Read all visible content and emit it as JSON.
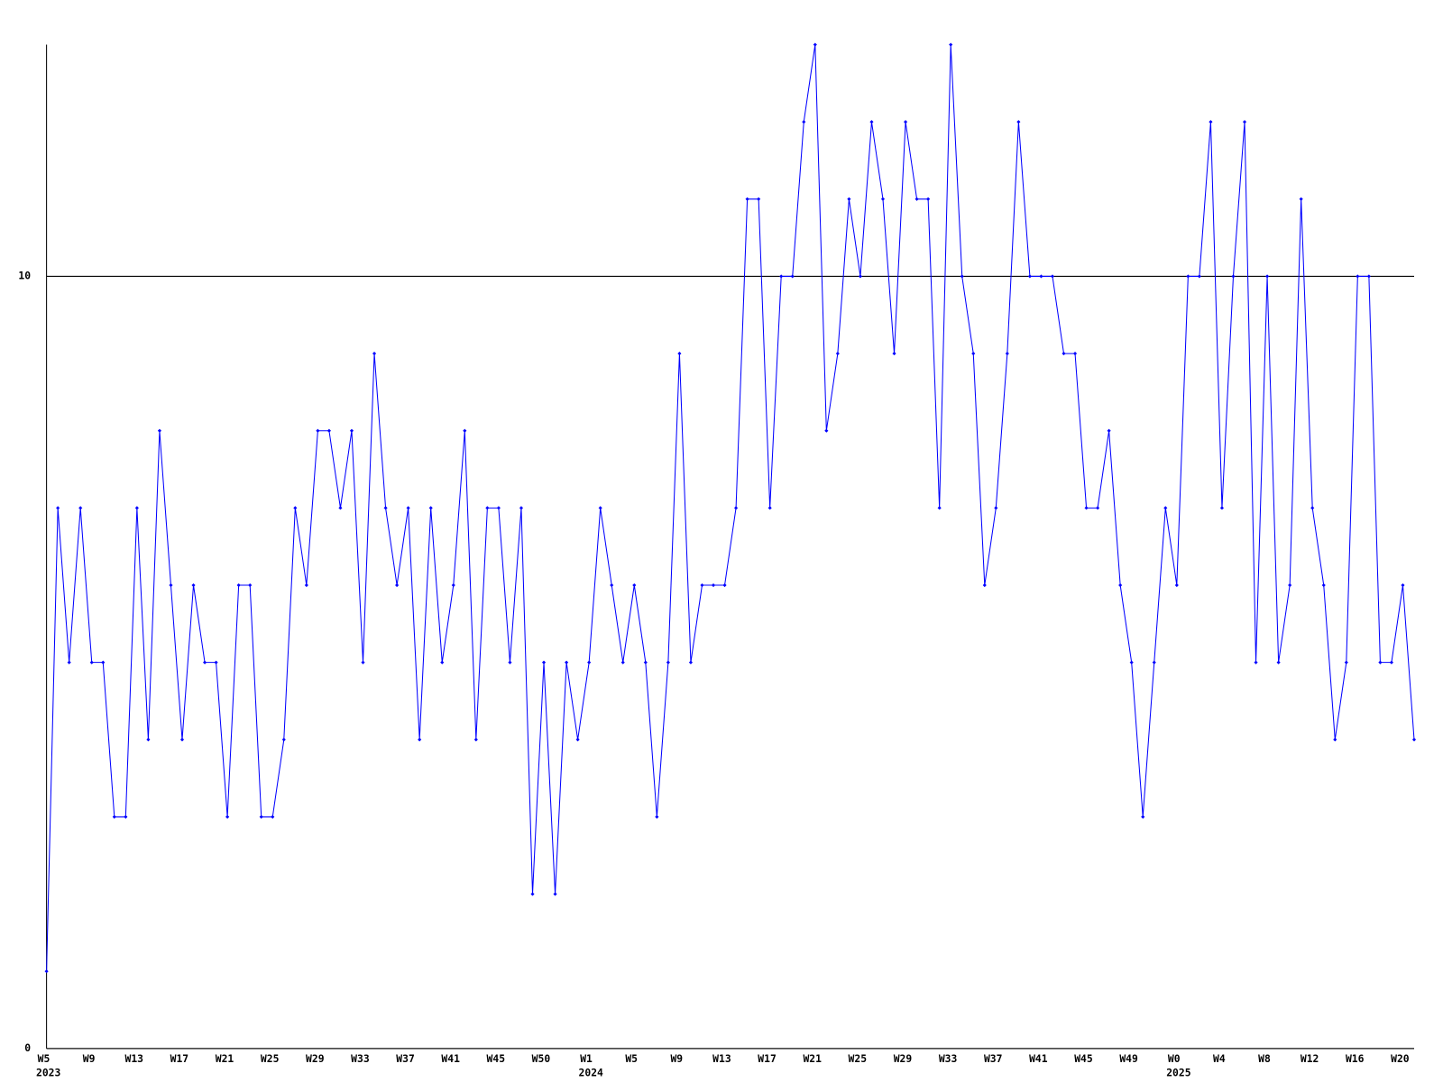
{
  "chart_data": {
    "type": "line",
    "categories": [
      "W5",
      null,
      null,
      null,
      "W9",
      null,
      null,
      null,
      "W13",
      null,
      null,
      null,
      "W17",
      null,
      null,
      null,
      "W21",
      null,
      null,
      null,
      "W25",
      null,
      null,
      null,
      "W29",
      null,
      null,
      null,
      "W33",
      null,
      null,
      null,
      "W37",
      null,
      null,
      null,
      "W41",
      null,
      null,
      null,
      "W45",
      null,
      null,
      null,
      "W50",
      null,
      null,
      null,
      "W1",
      null,
      null,
      null,
      "W5",
      null,
      null,
      null,
      "W9",
      null,
      null,
      null,
      "W13",
      null,
      null,
      null,
      "W17",
      null,
      null,
      null,
      "W21",
      null,
      null,
      null,
      "W25",
      null,
      null,
      null,
      "W29",
      null,
      null,
      null,
      "W33",
      null,
      null,
      null,
      "W37",
      null,
      null,
      null,
      "W41",
      null,
      null,
      null,
      "W45",
      null,
      null,
      null,
      "W49",
      null,
      null,
      null,
      "W0",
      null,
      null,
      null,
      "W4",
      null,
      null,
      null,
      "W8",
      null,
      null,
      null,
      "W12",
      null,
      null,
      null,
      "W16",
      null,
      null,
      null,
      "W20",
      null
    ],
    "category_years": [
      "2023",
      null,
      null,
      null,
      null,
      null,
      null,
      null,
      null,
      null,
      null,
      null,
      null,
      null,
      null,
      null,
      null,
      null,
      null,
      null,
      null,
      null,
      null,
      null,
      null,
      null,
      null,
      null,
      null,
      null,
      null,
      null,
      null,
      null,
      null,
      null,
      null,
      null,
      null,
      null,
      null,
      null,
      null,
      null,
      null,
      null,
      null,
      null,
      "2024",
      null,
      null,
      null,
      null,
      null,
      null,
      null,
      null,
      null,
      null,
      null,
      null,
      null,
      null,
      null,
      null,
      null,
      null,
      null,
      null,
      null,
      null,
      null,
      null,
      null,
      null,
      null,
      null,
      null,
      null,
      null,
      null,
      null,
      null,
      null,
      null,
      null,
      null,
      null,
      null,
      null,
      null,
      null,
      null,
      null,
      null,
      null,
      null,
      null,
      null,
      null,
      "2025",
      null,
      null,
      null,
      null,
      null,
      null,
      null,
      null,
      null,
      null,
      null,
      null,
      null,
      null,
      null,
      null,
      null,
      null,
      null,
      null,
      null
    ],
    "series": [
      {
        "color": "#0000ff",
        "values": [
          1,
          7,
          5,
          7,
          5,
          5,
          3,
          3,
          7,
          4,
          8,
          6,
          4,
          6,
          5,
          5,
          3,
          6,
          6,
          3,
          3,
          4,
          7,
          6,
          8,
          8,
          7,
          8,
          5,
          9,
          7,
          6,
          7,
          4,
          7,
          5,
          6,
          8,
          4,
          7,
          7,
          5,
          7,
          2,
          5,
          2,
          5,
          4,
          5,
          7,
          6,
          5,
          6,
          5,
          3,
          5,
          9,
          5,
          6,
          6,
          6,
          7,
          11,
          11,
          7,
          10,
          10,
          12,
          13,
          8,
          9,
          11,
          10,
          12,
          11,
          9,
          12,
          11,
          11,
          7,
          13,
          10,
          9,
          6,
          7,
          9,
          12,
          10,
          10,
          10,
          9,
          9,
          7,
          7,
          8,
          6,
          5,
          3,
          5,
          7,
          6,
          10,
          10,
          12,
          7,
          10,
          12,
          5,
          10,
          5,
          6,
          11,
          7,
          6,
          4,
          5,
          10,
          10,
          5,
          5,
          6,
          4
        ]
      }
    ],
    "ylim": [
      0,
      13
    ],
    "yticks": [
      0,
      10
    ],
    "grid": true
  }
}
